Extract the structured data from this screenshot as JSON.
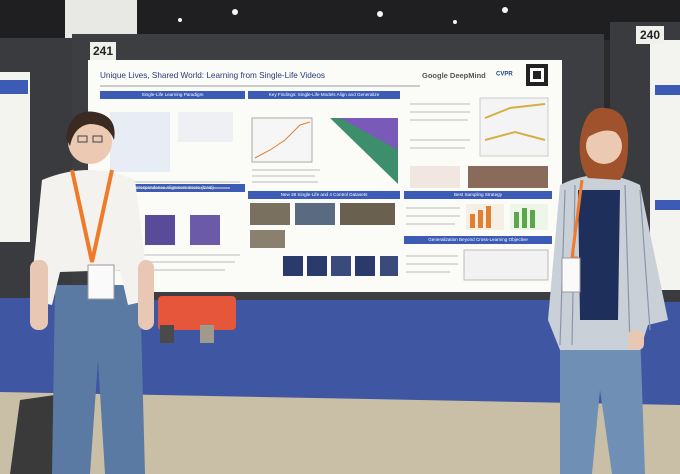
{
  "scene": {
    "board_numbers": [
      "241",
      "240"
    ],
    "poster": {
      "title": "Unique Lives, Shared World: Learning from Single-Life Videos",
      "logo": "Google DeepMind",
      "conference": "CVPR",
      "sections": [
        "Single-Life Learning Paradigm",
        "Key Findings: Single-Life Models Align and Generalize",
        "Correspondence Alignment Score (CAS)",
        "New 38 Single-Life and 4 Control Datasets",
        "Best Sampling Strategy",
        "Generalization Beyond Cross-Learning Objective"
      ]
    }
  }
}
